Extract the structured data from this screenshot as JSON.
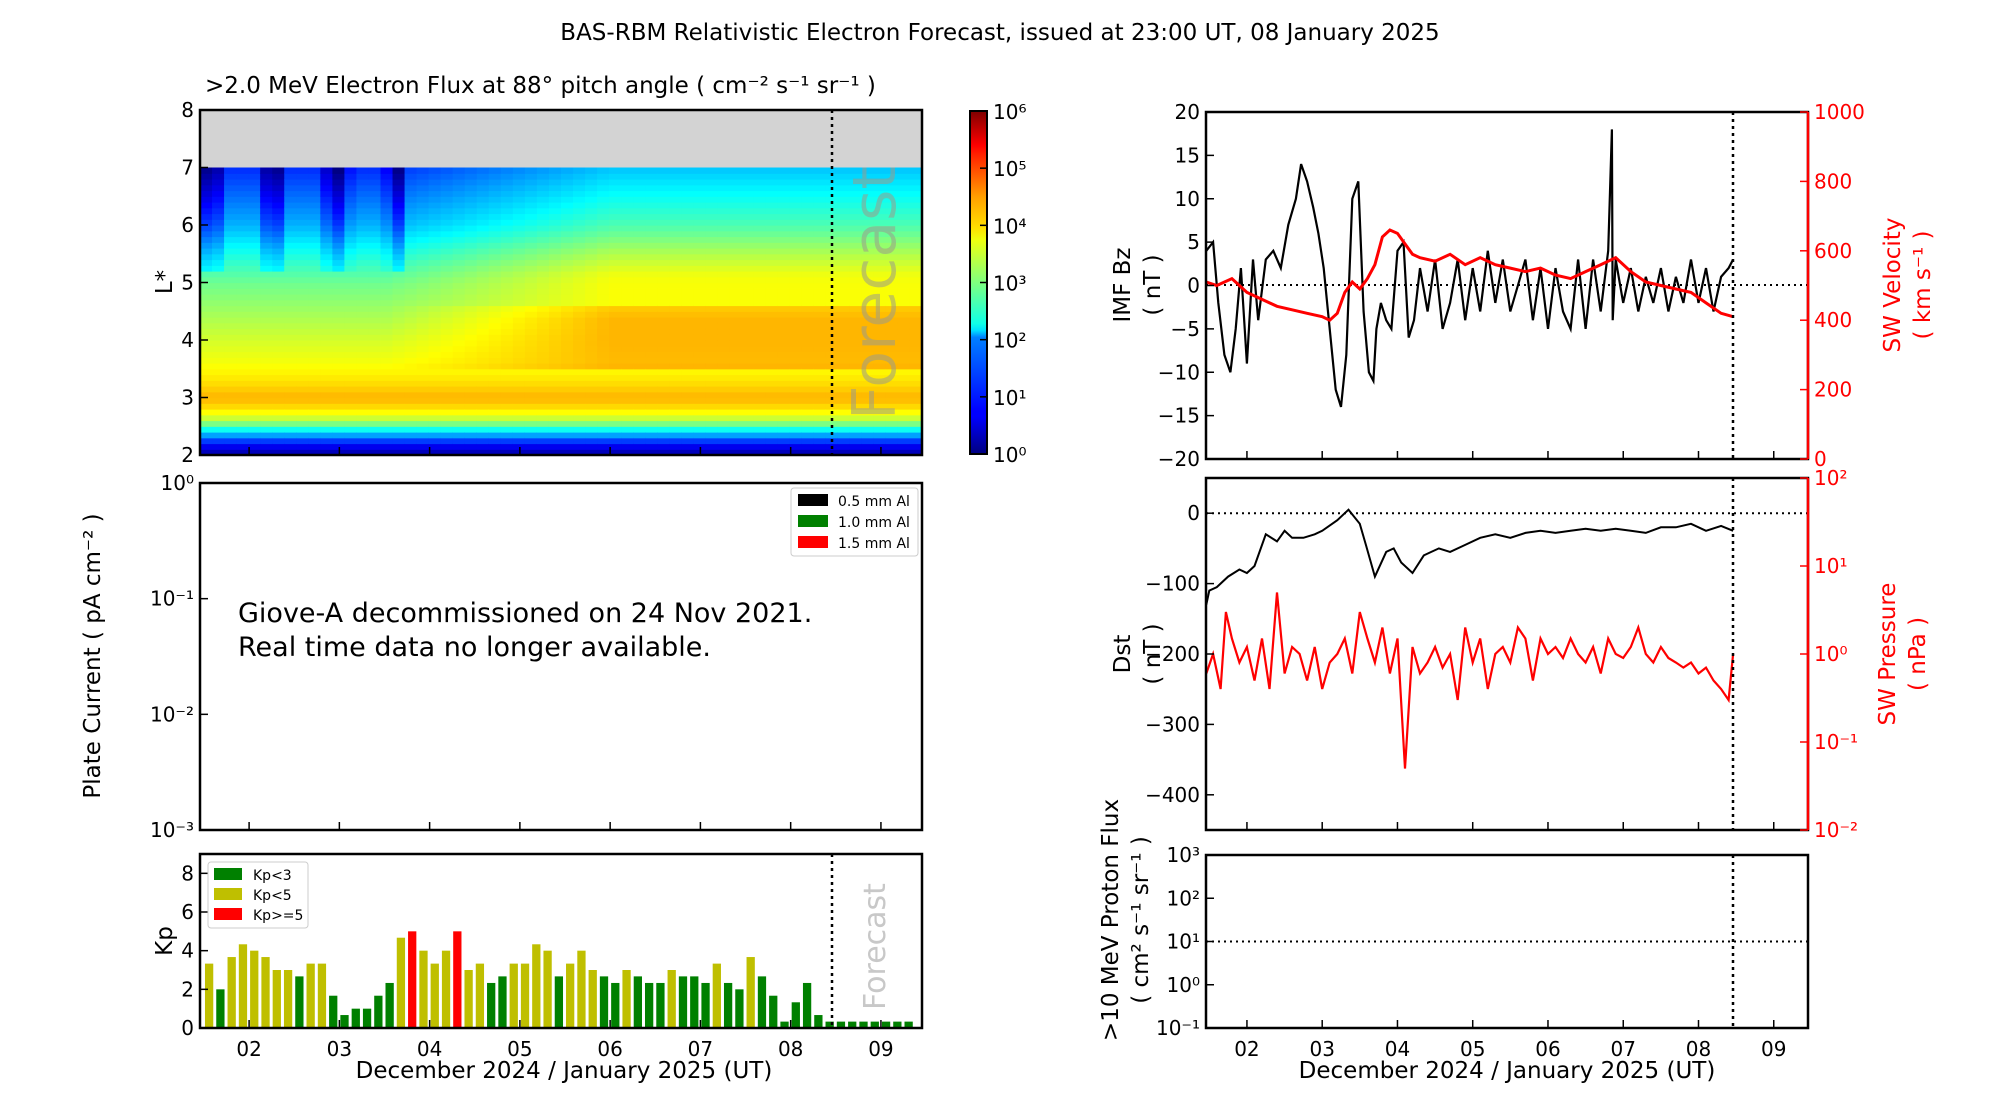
{
  "title": "BAS-RBM Relativistic Electron Forecast, issued at 23:00 UT, 08 January 2025",
  "x_axis": {
    "label": "December 2024 / January 2025 (UT)",
    "ticks": [
      "02",
      "03",
      "04",
      "05",
      "06",
      "07",
      "08",
      "09"
    ],
    "tick_days": [
      2,
      3,
      4,
      5,
      6,
      7,
      8,
      9
    ],
    "range_days": [
      1.456,
      9.455
    ],
    "forecast_start_day": 8.458
  },
  "forecast_label": "Forecast",
  "chart_data": [
    {
      "id": "electron-flux",
      "type": "heatmap",
      "title": ">2.0 MeV Electron Flux at 88° pitch angle ( cm⁻² s⁻¹ sr⁻¹ )",
      "ylabel": "L*",
      "ylim": [
        2,
        8
      ],
      "yticks": [
        "2",
        "3",
        "4",
        "5",
        "6",
        "7",
        "8"
      ],
      "no_data_above_L": 7,
      "no_data_color": "#d3d3d3",
      "colorbar": {
        "scale": "log",
        "range": [
          1,
          1000000
        ],
        "ticks": [
          "10⁰",
          "10¹",
          "10²",
          "10³",
          "10⁴",
          "10⁵",
          "10⁶"
        ],
        "colormap": "jet"
      },
      "profile_log10_flux": [
        {
          "L": 2.0,
          "v": 0.2
        },
        {
          "L": 2.2,
          "v": 0.8
        },
        {
          "L": 2.4,
          "v": 2.0
        },
        {
          "L": 2.6,
          "v": 3.3
        },
        {
          "L": 2.8,
          "v": 3.9
        },
        {
          "L": 3.0,
          "v": 4.2
        },
        {
          "L": 3.3,
          "v": 3.9
        },
        {
          "L": 3.6,
          "v": 3.7
        },
        {
          "L": 4.0,
          "v": 3.5
        },
        {
          "L": 4.5,
          "v": 3.2
        },
        {
          "L": 5.0,
          "v": 2.9
        },
        {
          "L": 5.5,
          "v": 2.4
        },
        {
          "L": 6.0,
          "v": 1.8
        },
        {
          "L": 6.5,
          "v": 1.4
        },
        {
          "L": 7.0,
          "v": 1.0
        }
      ],
      "late_period_log10_boost": 0.9
    },
    {
      "id": "plate-current",
      "type": "line",
      "ylabel": "Plate Current ( pA cm⁻² )",
      "yscale": "log",
      "ylim": [
        0.001,
        1
      ],
      "yticks": [
        "10⁻³",
        "10⁻²",
        "10⁻¹",
        "10⁰"
      ],
      "legend": [
        {
          "label": "0.5 mm Al",
          "color": "#000000"
        },
        {
          "label": "1.0 mm Al",
          "color": "#008000"
        },
        {
          "label": "1.5 mm Al",
          "color": "#ff0000"
        }
      ],
      "legend_position": "top-right",
      "annotation": [
        "Giove-A decommissioned on 24 Nov 2021.",
        "Real time data no longer available."
      ],
      "series": []
    },
    {
      "id": "kp",
      "type": "bar",
      "ylabel": "Kp",
      "ylim": [
        0,
        9
      ],
      "yticks": [
        "0",
        "2",
        "4",
        "6",
        "8"
      ],
      "bin_hours": 3,
      "start_day": 1.5,
      "legend": [
        {
          "label": "Kp<3",
          "color": "#008000"
        },
        {
          "label": "Kp<5",
          "color": "#bfbf00"
        },
        {
          "label": "Kp>=5",
          "color": "#ff0000"
        }
      ],
      "legend_position": "top-left",
      "values": [
        3.33,
        2.0,
        3.67,
        4.33,
        4.0,
        3.67,
        3.0,
        3.0,
        2.67,
        3.33,
        3.33,
        1.67,
        0.67,
        1.0,
        1.0,
        1.67,
        2.33,
        4.67,
        5.0,
        4.0,
        3.33,
        4.0,
        5.0,
        3.0,
        3.33,
        2.33,
        2.67,
        3.33,
        3.33,
        4.33,
        4.0,
        2.67,
        3.33,
        4.0,
        3.0,
        2.67,
        2.33,
        3.0,
        2.67,
        2.33,
        2.33,
        3.0,
        2.67,
        2.67,
        2.33,
        3.33,
        2.33,
        2.0,
        3.67,
        2.67,
        1.67,
        0.33,
        1.33,
        2.33,
        0.67
      ],
      "forecast_values": [
        0.33,
        0.33,
        0.33,
        0.33,
        0.33,
        0.33,
        0.33,
        0.33
      ]
    },
    {
      "id": "imf-bz",
      "type": "line",
      "ylabel": "IMF Bz ( nT )",
      "ylim": [
        -20,
        20
      ],
      "yticks": [
        "−20",
        "−15",
        "−10",
        "−5",
        "0",
        "5",
        "10",
        "15",
        "20"
      ],
      "y2label": "SW Velocity ( km s⁻¹ )",
      "y2lim": [
        0,
        1000
      ],
      "y2ticks": [
        "0",
        "200",
        "400",
        "600",
        "800",
        "1000"
      ],
      "series": [
        {
          "name": "IMF Bz",
          "color": "#000000",
          "axis": "left",
          "x": [
            1.46,
            1.55,
            1.62,
            1.7,
            1.78,
            1.85,
            1.92,
            2.0,
            2.08,
            2.15,
            2.25,
            2.35,
            2.45,
            2.55,
            2.65,
            2.72,
            2.8,
            2.88,
            2.95,
            3.02,
            3.1,
            3.18,
            3.25,
            3.32,
            3.4,
            3.48,
            3.55,
            3.62,
            3.68,
            3.72,
            3.78,
            3.85,
            3.92,
            4.0,
            4.08,
            4.15,
            4.22,
            4.3,
            4.4,
            4.5,
            4.6,
            4.7,
            4.8,
            4.9,
            5.0,
            5.1,
            5.2,
            5.3,
            5.4,
            5.5,
            5.6,
            5.7,
            5.8,
            5.9,
            6.0,
            6.1,
            6.2,
            6.3,
            6.4,
            6.5,
            6.6,
            6.7,
            6.8,
            6.85,
            6.86,
            6.9,
            7.0,
            7.1,
            7.2,
            7.3,
            7.4,
            7.5,
            7.6,
            7.7,
            7.8,
            7.9,
            8.0,
            8.1,
            8.2,
            8.3,
            8.4,
            8.46
          ],
          "y": [
            4,
            5,
            -2,
            -8,
            -10,
            -5,
            2,
            -9,
            3,
            -4,
            3,
            4,
            2,
            7,
            10,
            14,
            12,
            9,
            6,
            2,
            -5,
            -12,
            -14,
            -8,
            10,
            12,
            -3,
            -10,
            -11,
            -5,
            -2,
            -4,
            -5,
            4,
            5,
            -6,
            -4,
            2,
            -3,
            3,
            -5,
            -2,
            3,
            -4,
            2,
            -3,
            4,
            -2,
            3,
            -3,
            0,
            3,
            -4,
            2,
            -5,
            2,
            -3,
            -5,
            3,
            -5,
            3,
            -3,
            4,
            18,
            -4,
            3,
            -2,
            2,
            -3,
            1,
            -2,
            2,
            -3,
            1,
            -2,
            3,
            -2,
            2,
            -3,
            1,
            2,
            3
          ]
        },
        {
          "name": "SW Velocity",
          "color": "#ff0000",
          "axis": "right",
          "x": [
            1.46,
            1.6,
            1.8,
            2.0,
            2.2,
            2.4,
            2.6,
            2.8,
            3.0,
            3.1,
            3.2,
            3.3,
            3.4,
            3.5,
            3.6,
            3.7,
            3.8,
            3.9,
            4.0,
            4.1,
            4.2,
            4.3,
            4.5,
            4.7,
            4.9,
            5.1,
            5.3,
            5.5,
            5.7,
            5.9,
            6.1,
            6.3,
            6.5,
            6.7,
            6.9,
            7.1,
            7.3,
            7.5,
            7.7,
            7.9,
            8.1,
            8.3,
            8.46
          ],
          "y": [
            510,
            500,
            520,
            480,
            460,
            440,
            430,
            420,
            410,
            400,
            420,
            480,
            510,
            490,
            520,
            560,
            640,
            660,
            650,
            620,
            590,
            580,
            570,
            590,
            560,
            580,
            560,
            550,
            540,
            550,
            530,
            520,
            540,
            560,
            580,
            540,
            510,
            500,
            490,
            480,
            450,
            420,
            410
          ]
        }
      ]
    },
    {
      "id": "dst",
      "type": "line",
      "ylabel": "Dst ( nT )",
      "ylim": [
        -450,
        50
      ],
      "yticks": [
        "−400",
        "−300",
        "−200",
        "−100",
        "0"
      ],
      "y2label": "SW Pressure ( nPa )",
      "y2scale": "log",
      "y2lim": [
        0.01,
        100
      ],
      "y2ticks": [
        "10⁻²",
        "10⁻¹",
        "10⁰",
        "10¹",
        "10²"
      ],
      "series": [
        {
          "name": "Dst",
          "color": "#000000",
          "axis": "left",
          "x": [
            1.46,
            1.5,
            1.6,
            1.75,
            1.9,
            2.0,
            2.1,
            2.25,
            2.4,
            2.5,
            2.6,
            2.75,
            2.9,
            3.0,
            3.2,
            3.35,
            3.5,
            3.58,
            3.7,
            3.85,
            3.95,
            4.05,
            4.2,
            4.35,
            4.45,
            4.55,
            4.7,
            4.9,
            5.1,
            5.3,
            5.5,
            5.7,
            5.9,
            6.1,
            6.3,
            6.5,
            6.7,
            6.9,
            7.1,
            7.3,
            7.5,
            7.7,
            7.9,
            8.1,
            8.3,
            8.46
          ],
          "y": [
            -130,
            -110,
            -105,
            -90,
            -80,
            -85,
            -75,
            -30,
            -40,
            -25,
            -35,
            -35,
            -30,
            -25,
            -10,
            5,
            -15,
            -45,
            -90,
            -55,
            -50,
            -70,
            -85,
            -60,
            -55,
            -50,
            -55,
            -45,
            -35,
            -30,
            -35,
            -28,
            -25,
            -28,
            -25,
            -22,
            -25,
            -22,
            -25,
            -28,
            -20,
            -20,
            -15,
            -25,
            -18,
            -25
          ]
        },
        {
          "name": "SW Pressure",
          "color": "#ff0000",
          "axis": "right",
          "scale": "log",
          "x": [
            1.46,
            1.55,
            1.65,
            1.72,
            1.8,
            1.9,
            2.0,
            2.1,
            2.2,
            2.3,
            2.4,
            2.5,
            2.6,
            2.7,
            2.8,
            2.9,
            3.0,
            3.1,
            3.2,
            3.3,
            3.4,
            3.5,
            3.6,
            3.7,
            3.8,
            3.9,
            4.0,
            4.1,
            4.2,
            4.3,
            4.4,
            4.5,
            4.6,
            4.7,
            4.8,
            4.9,
            5.0,
            5.1,
            5.2,
            5.3,
            5.4,
            5.5,
            5.6,
            5.7,
            5.8,
            5.9,
            6.0,
            6.1,
            6.2,
            6.3,
            6.4,
            6.5,
            6.6,
            6.7,
            6.8,
            6.9,
            7.0,
            7.1,
            7.2,
            7.3,
            7.4,
            7.5,
            7.6,
            7.7,
            7.8,
            7.9,
            8.0,
            8.1,
            8.2,
            8.3,
            8.4,
            8.46
          ],
          "y": [
            0.6,
            1.0,
            0.4,
            3.0,
            1.5,
            0.8,
            1.2,
            0.5,
            1.5,
            0.4,
            5.0,
            0.6,
            1.2,
            1.0,
            0.5,
            1.2,
            0.4,
            0.8,
            1.0,
            1.5,
            0.6,
            3.0,
            1.5,
            0.8,
            2.0,
            0.6,
            1.5,
            0.05,
            1.2,
            0.6,
            0.8,
            1.2,
            0.7,
            1.0,
            0.3,
            2.0,
            0.8,
            1.5,
            0.4,
            1.0,
            1.2,
            0.8,
            2.0,
            1.5,
            0.5,
            1.5,
            1.0,
            1.2,
            0.9,
            1.5,
            1.0,
            0.8,
            1.2,
            0.6,
            1.5,
            1.0,
            0.9,
            1.2,
            2.0,
            1.0,
            0.8,
            1.2,
            0.9,
            0.8,
            0.7,
            0.8,
            0.6,
            0.7,
            0.5,
            0.4,
            0.3,
            1.0
          ]
        }
      ]
    },
    {
      "id": "proton-flux",
      "type": "line",
      "ylabel": ">10 MeV Proton Flux ( cm² s⁻¹ sr⁻¹ )",
      "yscale": "log",
      "ylim": [
        0.1,
        1000
      ],
      "yticks": [
        "10⁻¹",
        "10⁰",
        "10¹",
        "10²",
        "10³"
      ],
      "threshold": 10,
      "series": []
    }
  ]
}
